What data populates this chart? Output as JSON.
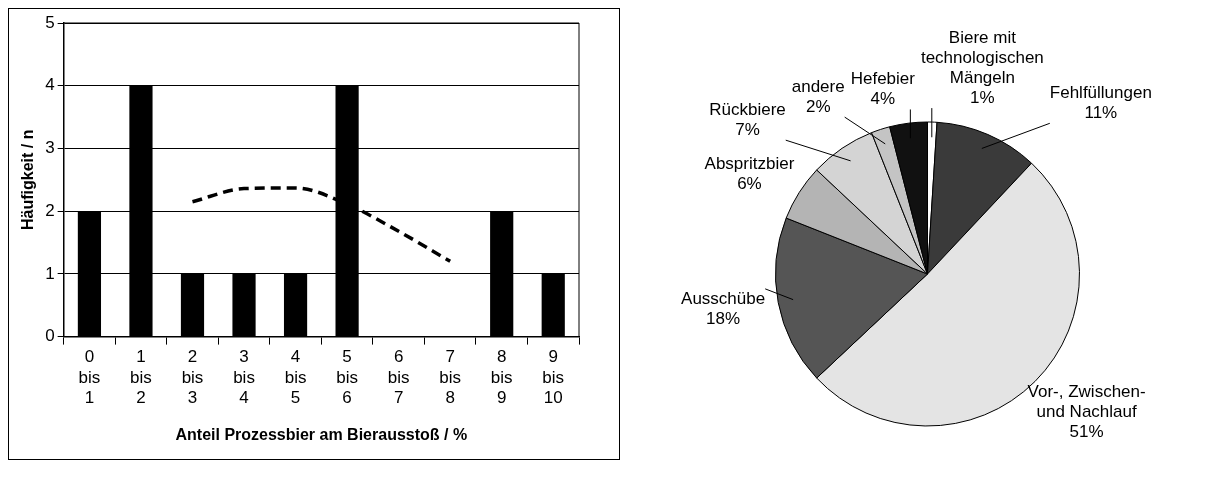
{
  "chart_data": [
    {
      "type": "bar",
      "categories": [
        "0 bis 1",
        "1 bis 2",
        "2 bis 3",
        "3 bis 4",
        "4 bis 5",
        "5 bis 6",
        "6 bis 7",
        "7 bis 8",
        "8 bis 9",
        "9 bis 10"
      ],
      "series": [
        {
          "type": "bar",
          "color": "#000000",
          "values": [
            2,
            4,
            1,
            1,
            1,
            4,
            0,
            0,
            2,
            1
          ]
        },
        {
          "type": "line",
          "color": "#000000",
          "line_style": "dashed",
          "values": [
            null,
            null,
            2.15,
            2.36,
            2.37,
            2.11,
            1.68,
            1.2,
            null,
            null
          ]
        }
      ],
      "xlabel": "Anteil Prozessbier am Bierausstoß / %",
      "ylabel": "Häufigkeit / n",
      "ylim": [
        0,
        5
      ],
      "yticks": [
        0,
        1,
        2,
        3,
        4,
        5
      ],
      "grid": "y",
      "marker": "none"
    },
    {
      "type": "pie",
      "categories": [
        "Biere mit technologischen Mängeln",
        "Fehlfüllungen",
        "Vor-, Zwischen- und Nachlauf",
        "Ausschübe",
        "Abspritzbier",
        "Rückbiere",
        "andere",
        "Hefebier"
      ],
      "values": [
        1,
        11,
        51,
        18,
        6,
        7,
        2,
        4
      ],
      "colors": [
        "#ffffff",
        "#3a3a3a",
        "#e4e4e4",
        "#555555",
        "#b4b4b4",
        "#d4d4d4",
        "#c4c4c4",
        "#111111"
      ],
      "value_labels": [
        "1%",
        "11%",
        "51%",
        "18%",
        "6%",
        "7%",
        "2%",
        "4%"
      ]
    }
  ]
}
